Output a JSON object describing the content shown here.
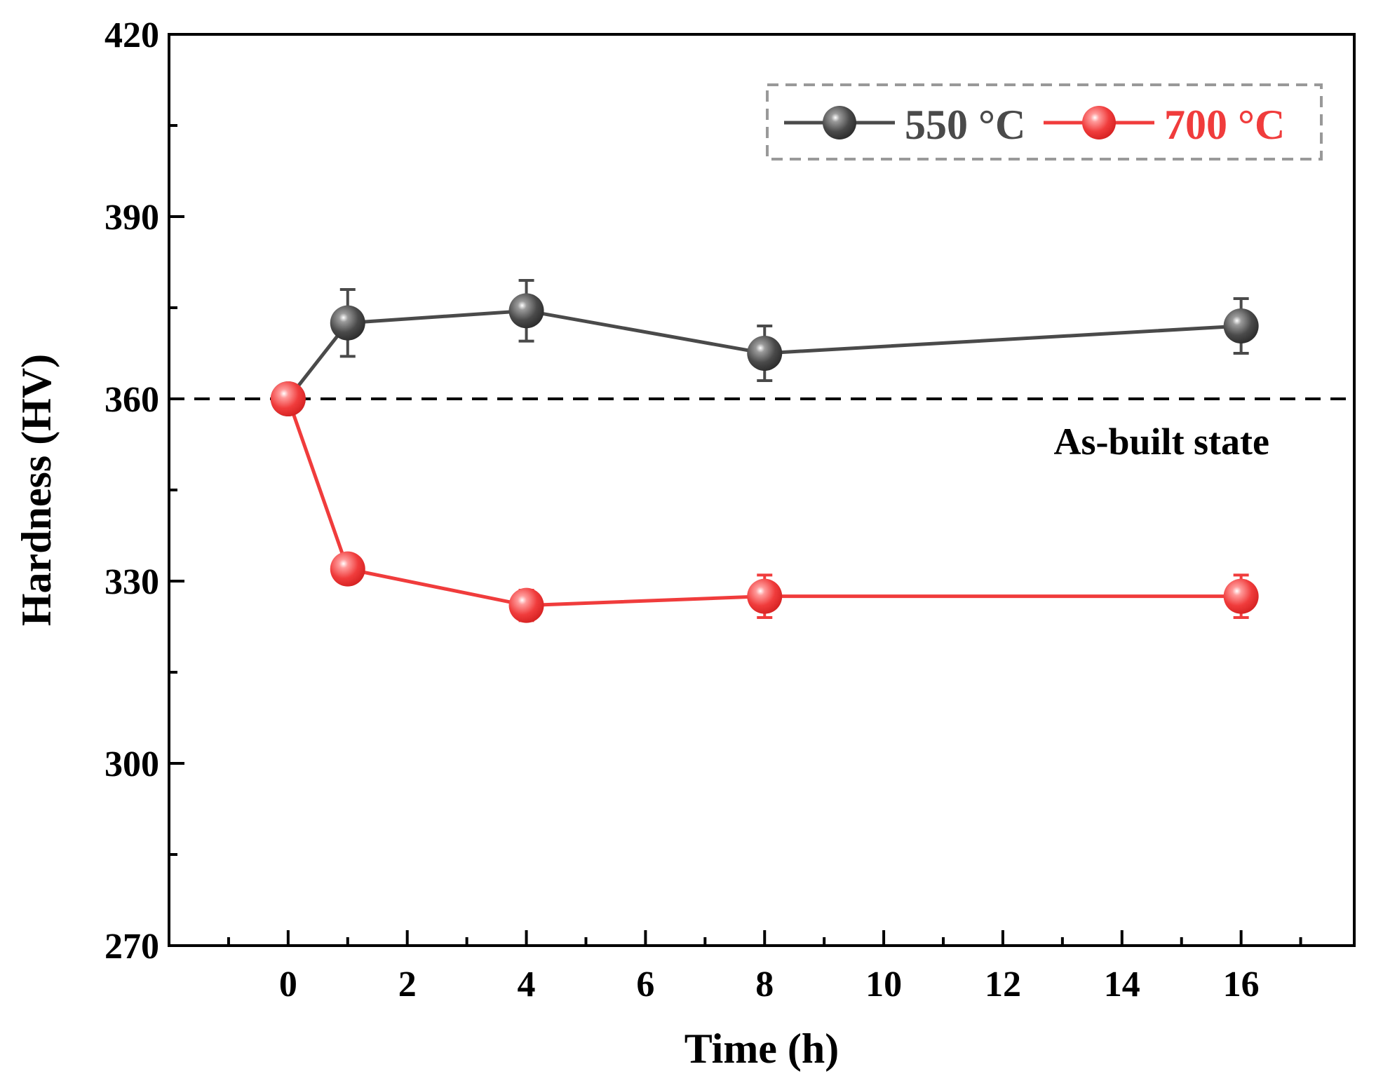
{
  "chart_data": {
    "type": "line",
    "title": "",
    "xlabel": "Time (h)",
    "ylabel": "Hardness (HV)",
    "xlim": [
      -2,
      17.9
    ],
    "ylim": [
      270,
      420
    ],
    "xticks": [
      0,
      2,
      4,
      6,
      8,
      10,
      12,
      14,
      16
    ],
    "xtick_labels": [
      "0",
      "2",
      "4",
      "6",
      "8",
      "10",
      "12",
      "14",
      "16"
    ],
    "yticks": [
      270,
      300,
      330,
      360,
      390,
      420
    ],
    "ytick_labels": [
      "270",
      "300",
      "330",
      "360",
      "390",
      "420"
    ],
    "grid": false,
    "legend_position": "top-right",
    "reference_line": {
      "y": 360,
      "label": "As-built state",
      "style": "dashed",
      "color": "#000000"
    },
    "series": [
      {
        "name": "550 °C",
        "color": "#4a4a4a",
        "x": [
          0,
          1,
          4,
          8,
          16
        ],
        "values": [
          360,
          372.5,
          374.5,
          367.5,
          372
        ],
        "errors": [
          2,
          5.5,
          5,
          4.5,
          4.5
        ]
      },
      {
        "name": "700 °C",
        "color": "#f03c3c",
        "x": [
          0,
          1,
          4,
          8,
          16
        ],
        "values": [
          360,
          332,
          326,
          327.5,
          327.5
        ],
        "errors": [
          2,
          2,
          2.5,
          3.5,
          3.5
        ]
      }
    ]
  }
}
